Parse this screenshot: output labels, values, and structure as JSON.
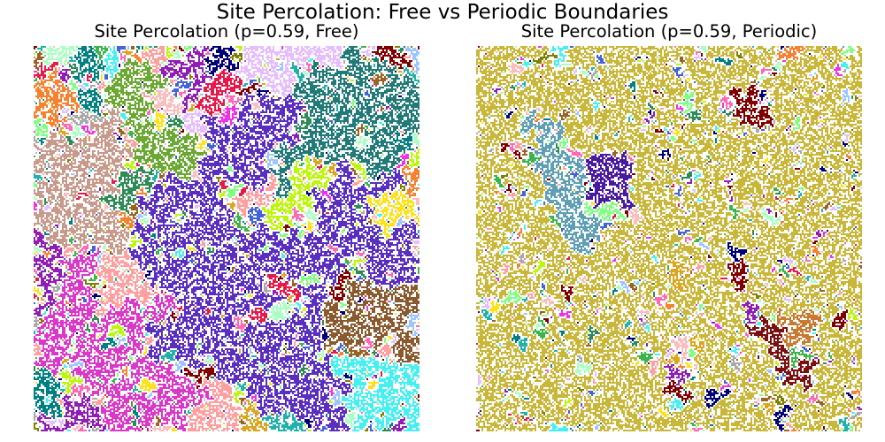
{
  "figure": {
    "title": "Site Percolation: Free vs Periodic Boundaries"
  },
  "panels": [
    {
      "title": "Site Percolation (p=0.59, Free)",
      "boundary": "free",
      "occupation_probability": 0.59
    },
    {
      "title": "Site Percolation (p=0.59, Periodic)",
      "boundary": "periodic",
      "occupation_probability": 0.59
    }
  ],
  "colors": {
    "empty_site": "#ffffff",
    "dominant_left": [
      "#5a2fc0",
      "#d938c8",
      "#1f7a78",
      "#c89a8c",
      "#8a5a2e",
      "#6aa832"
    ],
    "dominant_right": [
      "#c9b73a",
      "#5f9fb5",
      "#4a1a9e",
      "#7a1010",
      "#c77a30"
    ],
    "palette": [
      "#e6194b",
      "#3cb44b",
      "#ffe119",
      "#4363d8",
      "#f58231",
      "#911eb4",
      "#46f0f0",
      "#f032e6",
      "#bcf60c",
      "#fabebe",
      "#008080",
      "#e6beff",
      "#9a6324",
      "#aaffc3",
      "#800000",
      "#808000",
      "#000075",
      "#a9a9a9",
      "#7fff7f",
      "#ff9f9f",
      "#9fc5ff",
      "#2e8b57",
      "#daa520",
      "#20b2aa",
      "#ff69b4"
    ]
  }
}
